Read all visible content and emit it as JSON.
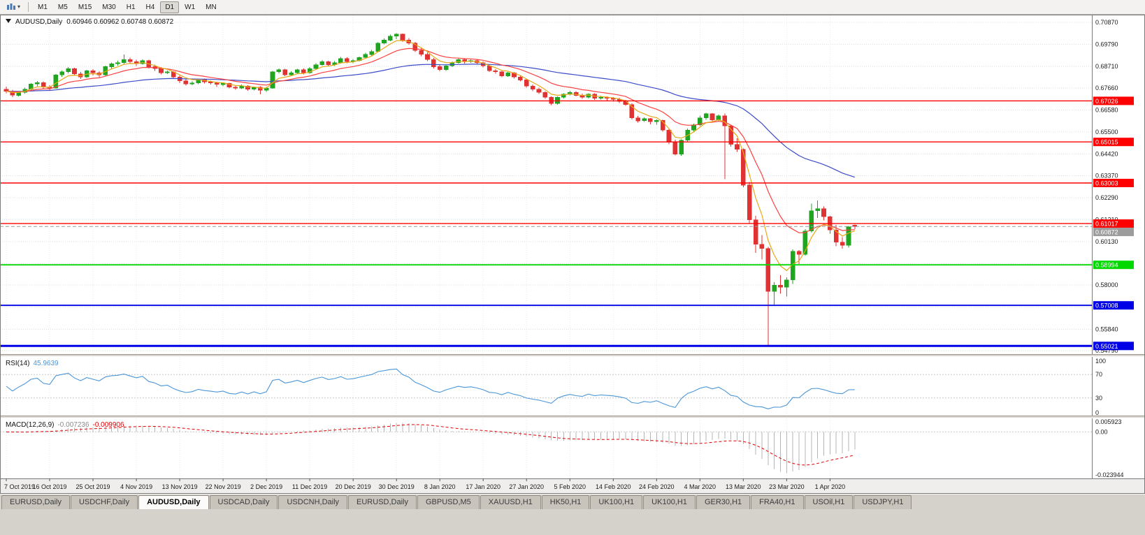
{
  "toolbar": {
    "timeframes": [
      "M1",
      "M5",
      "M15",
      "M30",
      "H1",
      "H4",
      "D1",
      "W1",
      "MN"
    ],
    "active_timeframe": "D1"
  },
  "colors": {
    "bull": "#1fa51f",
    "bear": "#e03232",
    "grid": "#dedede",
    "panel_grid": "#ebebeb",
    "background": "#ffffff",
    "axis_text": "#1a1a1a",
    "window": "#d5d2cb"
  },
  "chart_data": {
    "type": "candlestick",
    "symbol": "AUDUSD",
    "timeframe": "Daily",
    "title": {
      "symbol_period": "AUDUSD,Daily",
      "ohlc_text": "0.60946 0.60962 0.60748 0.60872"
    },
    "price_range": {
      "top": 0.7125,
      "bottom": 0.5462
    },
    "price_ticks": [
      "0.70870",
      "0.69790",
      "0.68710",
      "0.67660",
      "0.66580",
      "0.65500",
      "0.64420",
      "0.63370",
      "0.62290",
      "0.61210",
      "0.60130",
      "0.59050",
      "0.58000",
      "0.56920",
      "0.55840",
      "0.54790"
    ],
    "x_labels": [
      "7 Oct 2019",
      "16 Oct 2019",
      "25 Oct 2019",
      "4 Nov 2019",
      "13 Nov 2019",
      "22 Nov 2019",
      "2 Dec 2019",
      "11 Dec 2019",
      "20 Dec 2019",
      "30 Dec 2019",
      "8 Jan 2020",
      "17 Jan 2020",
      "27 Jan 2020",
      "5 Feb 2020",
      "14 Feb 2020",
      "24 Feb 2020",
      "4 Mar 2020",
      "13 Mar 2020",
      "23 Mar 2020",
      "1 Apr 2020"
    ],
    "label_every": 7,
    "moving_averages": [
      {
        "period": 50,
        "type": "ema",
        "color": "#3b4cc8"
      },
      {
        "period": 13,
        "type": "ema",
        "color": "#ff4040"
      },
      {
        "period": 5,
        "type": "ema",
        "color": "#e6a817"
      }
    ],
    "hlines": [
      {
        "value": 0.67026,
        "label": "0.67026",
        "color": "#ff0000",
        "width": 1.4
      },
      {
        "value": 0.65015,
        "label": "0.65015",
        "color": "#ff0000",
        "width": 1.4
      },
      {
        "value": 0.63003,
        "label": "0.63003",
        "color": "#ff0000",
        "width": 1.4
      },
      {
        "value": 0.61017,
        "label": "0.61017",
        "color": "#ff0000",
        "width": 1.4
      },
      {
        "value": 0.58994,
        "label": "0.58994",
        "color": "#00d800",
        "width": 1.8
      },
      {
        "value": 0.57008,
        "label": "0.57008",
        "color": "#0000e6",
        "width": 1.8
      },
      {
        "value": 0.55021,
        "label": "0.55021",
        "color": "#0000e6",
        "width": 3
      }
    ],
    "current_price": {
      "value": 0.60872,
      "label": "0.60872",
      "color": "#9c9c9c"
    },
    "rsi": {
      "name": "RSI(14)",
      "value": "45.9639",
      "period": 14,
      "ticks": [
        "100",
        "70",
        "30",
        "0"
      ],
      "levels": [
        70,
        30
      ],
      "color": "#4a96d9"
    },
    "macd": {
      "name": "MACD(12,26,9)",
      "value_main": "-0.007236",
      "value_signal": "-0.009906",
      "fast": 12,
      "slow": 26,
      "signal": 9,
      "ticks": [
        "0.005923",
        "0.00",
        "-0.023944"
      ],
      "hist_color": "#b5b5b5",
      "signal_color": "#dd0000"
    },
    "candles": [
      [
        0.676,
        0.6772,
        0.674,
        0.675
      ],
      [
        0.675,
        0.6758,
        0.6722,
        0.673
      ],
      [
        0.673,
        0.675,
        0.6724,
        0.6745
      ],
      [
        0.6745,
        0.6768,
        0.6738,
        0.676
      ],
      [
        0.676,
        0.679,
        0.6755,
        0.6785
      ],
      [
        0.6785,
        0.68,
        0.6775,
        0.6792
      ],
      [
        0.6792,
        0.6798,
        0.676,
        0.677
      ],
      [
        0.677,
        0.678,
        0.6754,
        0.6765
      ],
      [
        0.6765,
        0.6835,
        0.6762,
        0.683
      ],
      [
        0.683,
        0.6852,
        0.682,
        0.6845
      ],
      [
        0.6845,
        0.6868,
        0.6838,
        0.686
      ],
      [
        0.686,
        0.6865,
        0.6825,
        0.6835
      ],
      [
        0.6835,
        0.6845,
        0.681,
        0.682
      ],
      [
        0.682,
        0.6855,
        0.6815,
        0.685
      ],
      [
        0.685,
        0.6858,
        0.6828,
        0.684
      ],
      [
        0.684,
        0.6848,
        0.6818,
        0.683
      ],
      [
        0.683,
        0.6875,
        0.6825,
        0.687
      ],
      [
        0.687,
        0.689,
        0.686,
        0.6885
      ],
      [
        0.6885,
        0.69,
        0.6875,
        0.689
      ],
      [
        0.689,
        0.693,
        0.6884,
        0.6905
      ],
      [
        0.6905,
        0.6915,
        0.6885,
        0.6895
      ],
      [
        0.6895,
        0.6905,
        0.6874,
        0.6885
      ],
      [
        0.6885,
        0.6906,
        0.688,
        0.69
      ],
      [
        0.69,
        0.6905,
        0.6862,
        0.687
      ],
      [
        0.687,
        0.688,
        0.685,
        0.686
      ],
      [
        0.686,
        0.6868,
        0.6832,
        0.684
      ],
      [
        0.684,
        0.6852,
        0.6834,
        0.6845
      ],
      [
        0.6845,
        0.685,
        0.6812,
        0.682
      ],
      [
        0.682,
        0.6828,
        0.679,
        0.68
      ],
      [
        0.68,
        0.6808,
        0.6778,
        0.6785
      ],
      [
        0.6785,
        0.6798,
        0.6779,
        0.679
      ],
      [
        0.679,
        0.681,
        0.6785,
        0.6805
      ],
      [
        0.6805,
        0.6812,
        0.6788,
        0.6795
      ],
      [
        0.6795,
        0.6802,
        0.6782,
        0.679
      ],
      [
        0.679,
        0.6796,
        0.677,
        0.6783
      ],
      [
        0.6783,
        0.6792,
        0.6775,
        0.6788
      ],
      [
        0.6788,
        0.6791,
        0.6764,
        0.677
      ],
      [
        0.677,
        0.6778,
        0.6757,
        0.6765
      ],
      [
        0.6765,
        0.6782,
        0.676,
        0.6775
      ],
      [
        0.6775,
        0.678,
        0.6752,
        0.676
      ],
      [
        0.676,
        0.6772,
        0.6754,
        0.677
      ],
      [
        0.677,
        0.6775,
        0.6735,
        0.6755
      ],
      [
        0.6755,
        0.677,
        0.6747,
        0.6765
      ],
      [
        0.6765,
        0.685,
        0.6762,
        0.6845
      ],
      [
        0.6845,
        0.6862,
        0.6838,
        0.6855
      ],
      [
        0.6855,
        0.686,
        0.6824,
        0.683
      ],
      [
        0.683,
        0.6848,
        0.6825,
        0.684
      ],
      [
        0.684,
        0.686,
        0.6835,
        0.6855
      ],
      [
        0.6855,
        0.6862,
        0.6832,
        0.684
      ],
      [
        0.684,
        0.6868,
        0.6836,
        0.686
      ],
      [
        0.686,
        0.6888,
        0.6855,
        0.688
      ],
      [
        0.688,
        0.6902,
        0.6875,
        0.6895
      ],
      [
        0.6895,
        0.69,
        0.6871,
        0.688
      ],
      [
        0.688,
        0.6898,
        0.6874,
        0.689
      ],
      [
        0.689,
        0.6918,
        0.6885,
        0.691
      ],
      [
        0.691,
        0.6916,
        0.6888,
        0.6895
      ],
      [
        0.6895,
        0.6908,
        0.6888,
        0.69
      ],
      [
        0.69,
        0.692,
        0.6895,
        0.6915
      ],
      [
        0.6915,
        0.6938,
        0.691,
        0.693
      ],
      [
        0.693,
        0.6952,
        0.6925,
        0.6945
      ],
      [
        0.6945,
        0.699,
        0.694,
        0.6985
      ],
      [
        0.6985,
        0.7008,
        0.698,
        0.7
      ],
      [
        0.7,
        0.7028,
        0.6995,
        0.702
      ],
      [
        0.702,
        0.7035,
        0.7005,
        0.703
      ],
      [
        0.703,
        0.7032,
        0.6992,
        0.7
      ],
      [
        0.7,
        0.701,
        0.6978,
        0.6985
      ],
      [
        0.6985,
        0.6992,
        0.6942,
        0.695
      ],
      [
        0.695,
        0.696,
        0.6922,
        0.693
      ],
      [
        0.693,
        0.694,
        0.6898,
        0.6905
      ],
      [
        0.6905,
        0.6912,
        0.6862,
        0.687
      ],
      [
        0.687,
        0.6878,
        0.6848,
        0.6855
      ],
      [
        0.6855,
        0.688,
        0.685,
        0.6875
      ],
      [
        0.6875,
        0.6895,
        0.6868,
        0.689
      ],
      [
        0.689,
        0.6912,
        0.6885,
        0.6905
      ],
      [
        0.6905,
        0.691,
        0.6886,
        0.6895
      ],
      [
        0.6895,
        0.6906,
        0.6889,
        0.69
      ],
      [
        0.69,
        0.6905,
        0.6882,
        0.689
      ],
      [
        0.689,
        0.6895,
        0.6866,
        0.6875
      ],
      [
        0.6875,
        0.688,
        0.6845,
        0.685
      ],
      [
        0.685,
        0.6858,
        0.6836,
        0.6845
      ],
      [
        0.6845,
        0.685,
        0.6818,
        0.6825
      ],
      [
        0.6825,
        0.6845,
        0.682,
        0.684
      ],
      [
        0.684,
        0.6845,
        0.6812,
        0.682
      ],
      [
        0.682,
        0.6828,
        0.6798,
        0.6805
      ],
      [
        0.6805,
        0.681,
        0.6768,
        0.6775
      ],
      [
        0.6775,
        0.6782,
        0.675,
        0.676
      ],
      [
        0.676,
        0.6768,
        0.6736,
        0.6745
      ],
      [
        0.6745,
        0.675,
        0.6712,
        0.672
      ],
      [
        0.672,
        0.6725,
        0.6682,
        0.669
      ],
      [
        0.669,
        0.6725,
        0.6684,
        0.672
      ],
      [
        0.672,
        0.674,
        0.6714,
        0.6735
      ],
      [
        0.6735,
        0.6752,
        0.673,
        0.6745
      ],
      [
        0.6745,
        0.675,
        0.6724,
        0.673
      ],
      [
        0.673,
        0.6738,
        0.6712,
        0.672
      ],
      [
        0.672,
        0.674,
        0.6715,
        0.6735
      ],
      [
        0.6735,
        0.674,
        0.6708,
        0.6715
      ],
      [
        0.6715,
        0.6728,
        0.6709,
        0.672
      ],
      [
        0.672,
        0.6725,
        0.6704,
        0.6715
      ],
      [
        0.6715,
        0.6722,
        0.6699,
        0.671
      ],
      [
        0.671,
        0.6718,
        0.6692,
        0.67
      ],
      [
        0.67,
        0.6708,
        0.6678,
        0.6685
      ],
      [
        0.6685,
        0.669,
        0.6612,
        0.662
      ],
      [
        0.662,
        0.6628,
        0.6597,
        0.6605
      ],
      [
        0.6605,
        0.6622,
        0.6599,
        0.6615
      ],
      [
        0.6615,
        0.6618,
        0.6588,
        0.66
      ],
      [
        0.66,
        0.6612,
        0.6586,
        0.6608
      ],
      [
        0.6608,
        0.661,
        0.6552,
        0.656
      ],
      [
        0.656,
        0.6565,
        0.649,
        0.65
      ],
      [
        0.65,
        0.6512,
        0.6436,
        0.6442
      ],
      [
        0.6442,
        0.6515,
        0.6434,
        0.651
      ],
      [
        0.651,
        0.6568,
        0.6504,
        0.656
      ],
      [
        0.656,
        0.6592,
        0.6548,
        0.6585
      ],
      [
        0.6585,
        0.663,
        0.658,
        0.662
      ],
      [
        0.662,
        0.6645,
        0.661,
        0.664
      ],
      [
        0.664,
        0.6642,
        0.6598,
        0.661
      ],
      [
        0.661,
        0.6635,
        0.6604,
        0.663
      ],
      [
        0.663,
        0.664,
        0.632,
        0.658
      ],
      [
        0.658,
        0.6585,
        0.6478,
        0.649
      ],
      [
        0.649,
        0.652,
        0.6452,
        0.6465
      ],
      [
        0.6465,
        0.647,
        0.628,
        0.629
      ],
      [
        0.629,
        0.6305,
        0.6102,
        0.612
      ],
      [
        0.612,
        0.614,
        0.5958,
        0.6
      ],
      [
        0.6,
        0.6045,
        0.5925,
        0.598
      ],
      [
        0.598,
        0.5988,
        0.5503,
        0.577
      ],
      [
        0.577,
        0.5815,
        0.5701,
        0.58
      ],
      [
        0.58,
        0.5848,
        0.5758,
        0.579
      ],
      [
        0.579,
        0.5838,
        0.5744,
        0.5825
      ],
      [
        0.5825,
        0.5975,
        0.5806,
        0.5965
      ],
      [
        0.5965,
        0.5972,
        0.5903,
        0.595
      ],
      [
        0.595,
        0.6075,
        0.5944,
        0.6065
      ],
      [
        0.6065,
        0.62,
        0.6058,
        0.6165
      ],
      [
        0.6165,
        0.6215,
        0.613,
        0.6175
      ],
      [
        0.6175,
        0.6185,
        0.6118,
        0.6135
      ],
      [
        0.6135,
        0.614,
        0.6052,
        0.607
      ],
      [
        0.607,
        0.6095,
        0.599,
        0.601
      ],
      [
        0.601,
        0.6035,
        0.5978,
        0.5995
      ],
      [
        0.5995,
        0.609,
        0.5984,
        0.6085
      ],
      [
        0.60946,
        0.60962,
        0.60748,
        0.60872
      ]
    ]
  },
  "tabs": {
    "items": [
      "EURUSD,Daily",
      "USDCHF,Daily",
      "AUDUSD,Daily",
      "USDCAD,Daily",
      "USDCNH,Daily",
      "EURUSD,Daily",
      "GBPUSD,M5",
      "XAUUSD,H1",
      "HK50,H1",
      "UK100,H1",
      "UK100,H1",
      "GER30,H1",
      "FRA40,H1",
      "USOil,H1",
      "USDJPY,H1"
    ],
    "active_index": 2
  }
}
